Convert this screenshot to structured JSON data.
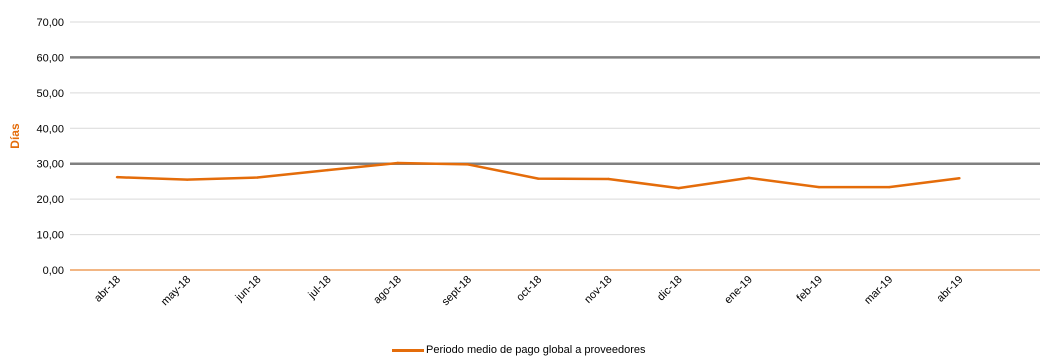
{
  "chart_data": {
    "type": "line",
    "title": "",
    "xlabel": "",
    "ylabel": "Días",
    "ylim": [
      0,
      70
    ],
    "y_ticks": [
      "0,00",
      "10,00",
      "20,00",
      "30,00",
      "40,00",
      "50,00",
      "60,00",
      "70,00"
    ],
    "grid": true,
    "legend_position": "bottom",
    "categories": [
      "abr-18",
      "may-18",
      "jun-18",
      "jul-18",
      "ago-18",
      "sept-18",
      "oct-18",
      "nov-18",
      "dic-18",
      "ene-19",
      "feb-19",
      "mar-19",
      "abr-19"
    ],
    "series": [
      {
        "name": "Periodo medio de pago global a proveedores",
        "color": "#E46C0A",
        "values": [
          26.2,
          25.5,
          26.1,
          28.2,
          30.2,
          29.8,
          25.8,
          25.7,
          23.1,
          26.0,
          23.4,
          23.4,
          25.9
        ]
      }
    ],
    "reference_lines": [
      {
        "value": 60,
        "color": "#808080"
      },
      {
        "value": 30,
        "color": "#808080"
      }
    ],
    "axis_color": "#E46C0A"
  }
}
